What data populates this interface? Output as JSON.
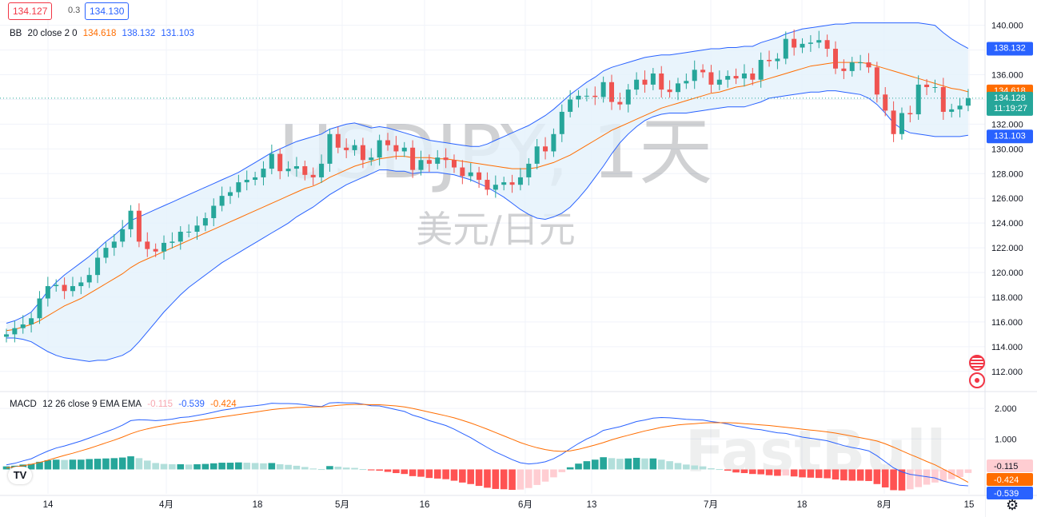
{
  "header": {
    "bid": "134.127",
    "spread": "0.3",
    "ask": "134.130"
  },
  "watermark": {
    "symbol": "USDJPY, 1天",
    "name": "美元/日元",
    "brand": "FastBull"
  },
  "legend_bb": {
    "name": "BB",
    "params": "20 close 2 0",
    "basis": "134.618",
    "upper": "138.132",
    "lower": "131.103"
  },
  "legend_macd": {
    "name": "MACD",
    "params": "12 26 close 9 EMA EMA",
    "hist": "-0.115",
    "macd": "-0.539",
    "signal": "-0.424"
  },
  "price_labels": {
    "upper": "138.132",
    "basis": "134.618",
    "last": "134.128",
    "countdown": "11:19:27",
    "lower": "131.103",
    "macd_hist": "-0.115",
    "macd_signal": "-0.424",
    "macd_line": "-0.539"
  },
  "colors": {
    "up": "#26a69a",
    "down": "#ef5350",
    "bb_line": "#2962ff",
    "bb_fill": "#e3f1fb",
    "basis": "#ff6d00",
    "macd_line": "#2962ff",
    "signal_line": "#ff6d00",
    "hist_up_strong": "#26a69a",
    "hist_up_weak": "#b2dfdb",
    "hist_down_strong": "#ff5252",
    "hist_down_weak": "#ffcdd2"
  },
  "icons": [
    "tradingview-logo-icon",
    "us-flag-icon",
    "jp-flag-icon",
    "gear-icon"
  ],
  "chart_data": [
    {
      "type": "candlestick",
      "title": "USDJPY, 1天",
      "x_tick_labels": [
        "14",
        "4月",
        "18",
        "5月",
        "16",
        "6月",
        "13",
        "7月",
        "18",
        "8月",
        "15"
      ],
      "y_ticks": [
        "140.000",
        "138.000",
        "136.000",
        "134.000",
        "132.000",
        "130.000",
        "128.000",
        "126.000",
        "124.000",
        "122.000",
        "120.000",
        "118.000",
        "116.000",
        "114.000",
        "112.000"
      ],
      "ylim": [
        110.5,
        141.4
      ],
      "close": [
        115.0,
        115.5,
        115.8,
        116.3,
        117.9,
        118.9,
        119.0,
        118.5,
        118.9,
        119.2,
        119.8,
        121.2,
        122.0,
        122.5,
        123.5,
        125.0,
        122.5,
        121.9,
        121.7,
        122.4,
        122.5,
        123.3,
        123.3,
        123.8,
        124.4,
        125.4,
        126.2,
        126.5,
        127.3,
        127.5,
        127.7,
        128.4,
        129.6,
        128.2,
        128.4,
        128.6,
        127.9,
        127.7,
        128.8,
        131.2,
        130.1,
        129.9,
        130.3,
        129.1,
        129.3,
        130.7,
        130.3,
        129.8,
        130.1,
        128.3,
        129.1,
        128.8,
        129.3,
        129.1,
        128.5,
        127.8,
        128.1,
        127.5,
        126.7,
        127.1,
        127.3,
        127.1,
        127.7,
        128.8,
        130.2,
        129.8,
        131.2,
        133.0,
        134.0,
        134.3,
        134.3,
        134.2,
        135.4,
        133.8,
        133.6,
        134.8,
        135.6,
        135.2,
        136.1,
        134.8,
        134.6,
        135.3,
        135.5,
        136.4,
        136.2,
        135.2,
        135.6,
        135.9,
        135.7,
        136.1,
        135.6,
        137.2,
        137.1,
        137.3,
        138.9,
        138.2,
        138.5,
        138.6,
        138.8,
        138.1,
        136.5,
        136.3,
        137.0,
        137.0,
        136.6,
        134.4,
        133.1,
        131.2,
        132.9,
        132.8,
        135.2,
        135.0,
        135.0,
        133.0,
        133.2,
        133.5,
        134.1
      ],
      "open": [
        114.8,
        115.0,
        115.5,
        115.8,
        116.3,
        117.9,
        118.9,
        119.0,
        118.5,
        118.9,
        119.2,
        119.8,
        121.2,
        122.0,
        122.5,
        123.5,
        125.0,
        122.5,
        121.9,
        121.7,
        122.4,
        122.5,
        123.3,
        123.3,
        123.8,
        124.4,
        125.4,
        126.2,
        126.5,
        127.3,
        127.5,
        127.7,
        128.4,
        129.6,
        128.2,
        128.4,
        128.6,
        127.9,
        127.7,
        128.8,
        131.2,
        130.1,
        129.9,
        130.3,
        129.1,
        129.3,
        130.7,
        130.3,
        129.8,
        130.1,
        128.3,
        129.1,
        128.8,
        129.3,
        129.1,
        128.5,
        127.8,
        128.1,
        127.5,
        126.7,
        127.1,
        127.3,
        127.1,
        127.7,
        128.8,
        130.2,
        129.8,
        131.2,
        133.0,
        134.0,
        134.3,
        134.3,
        134.2,
        135.4,
        133.8,
        133.6,
        134.8,
        135.6,
        135.2,
        136.1,
        134.8,
        134.6,
        135.3,
        135.5,
        136.4,
        136.2,
        135.2,
        135.6,
        135.9,
        135.7,
        136.1,
        135.6,
        137.2,
        137.1,
        137.3,
        138.9,
        138.2,
        138.5,
        138.6,
        138.8,
        138.1,
        136.5,
        136.3,
        137.0,
        137.0,
        136.6,
        134.4,
        133.1,
        131.2,
        132.9,
        132.8,
        135.2,
        135.0,
        135.0,
        133.0,
        133.2,
        133.5
      ],
      "series": [
        {
          "name": "BB",
          "values_label": "upper",
          "values": [
            115.9,
            116.1,
            116.4,
            116.8,
            117.6,
            118.5,
            119.2,
            119.8,
            120.3,
            120.8,
            121.3,
            121.9,
            122.5,
            123.0,
            123.6,
            124.2,
            124.5,
            124.8,
            125.1,
            125.4,
            125.7,
            126.0,
            126.3,
            126.6,
            126.9,
            127.2,
            127.5,
            127.8,
            128.1,
            128.5,
            128.9,
            129.3,
            129.7,
            130.0,
            130.3,
            130.6,
            130.8,
            131.0,
            131.2,
            131.6,
            131.8,
            132.0,
            132.1,
            131.9,
            131.7,
            131.8,
            131.7,
            131.5,
            131.3,
            131.1,
            130.9,
            130.7,
            130.6,
            130.5,
            130.4,
            130.3,
            130.2,
            130.2,
            130.4,
            130.7,
            131.0,
            131.3,
            131.6,
            131.9,
            132.3,
            132.7,
            133.2,
            133.8,
            134.4,
            134.9,
            135.4,
            135.8,
            136.3,
            136.6,
            136.8,
            137.0,
            137.2,
            137.4,
            137.5,
            137.6,
            137.6,
            137.7,
            137.8,
            137.9,
            138.0,
            138.1,
            138.1,
            138.2,
            138.2,
            138.3,
            138.3,
            138.6,
            138.8,
            139.0,
            139.3,
            139.5,
            139.7,
            139.8,
            139.9,
            140.0,
            140.1,
            140.1,
            140.2,
            140.2,
            140.2,
            140.2,
            140.2,
            140.2,
            140.2,
            140.2,
            140.2,
            140.1,
            140.0,
            139.4,
            138.9,
            138.5,
            138.132
          ]
        },
        {
          "name": "BB basis",
          "values": [
            115.3,
            115.4,
            115.6,
            115.8,
            116.1,
            116.5,
            116.9,
            117.3,
            117.6,
            117.9,
            118.3,
            118.7,
            119.1,
            119.5,
            119.9,
            120.4,
            120.8,
            121.1,
            121.4,
            121.7,
            122.0,
            122.3,
            122.6,
            122.9,
            123.2,
            123.5,
            123.8,
            124.1,
            124.4,
            124.7,
            125.0,
            125.3,
            125.6,
            125.9,
            126.2,
            126.5,
            126.8,
            127.0,
            127.3,
            127.7,
            128.0,
            128.3,
            128.6,
            128.8,
            129.0,
            129.2,
            129.3,
            129.4,
            129.4,
            129.3,
            129.3,
            129.3,
            129.2,
            129.2,
            129.1,
            129.0,
            128.9,
            128.8,
            128.7,
            128.6,
            128.5,
            128.4,
            128.4,
            128.4,
            128.5,
            128.7,
            128.9,
            129.2,
            129.5,
            129.9,
            130.3,
            130.7,
            131.1,
            131.5,
            131.8,
            132.1,
            132.4,
            132.7,
            133.0,
            133.3,
            133.5,
            133.7,
            133.9,
            134.1,
            134.3,
            134.5,
            134.6,
            134.8,
            135.0,
            135.1,
            135.3,
            135.5,
            135.7,
            135.9,
            136.1,
            136.3,
            136.5,
            136.7,
            136.8,
            136.9,
            137.0,
            137.0,
            137.0,
            137.0,
            136.9,
            136.7,
            136.5,
            136.3,
            136.1,
            135.9,
            135.7,
            135.5,
            135.3,
            135.1,
            134.9,
            134.8,
            134.618
          ]
        },
        {
          "name": "BB lower",
          "values": [
            114.7,
            114.7,
            114.6,
            114.4,
            114.0,
            113.6,
            113.3,
            113.1,
            113.0,
            112.9,
            112.8,
            112.9,
            112.9,
            113.1,
            113.3,
            113.7,
            114.4,
            115.2,
            116.0,
            116.8,
            117.5,
            118.2,
            118.8,
            119.3,
            119.8,
            120.3,
            120.8,
            121.2,
            121.6,
            122.0,
            122.4,
            122.8,
            123.2,
            123.6,
            124.0,
            124.5,
            124.9,
            125.3,
            125.8,
            126.3,
            126.7,
            127.1,
            127.4,
            127.7,
            128.0,
            128.3,
            128.3,
            128.2,
            128.2,
            128.0,
            128.1,
            128.1,
            128.1,
            128.0,
            127.9,
            127.7,
            127.5,
            127.2,
            126.9,
            126.5,
            126.1,
            125.6,
            125.1,
            124.7,
            124.4,
            124.3,
            124.5,
            124.8,
            125.3,
            126.0,
            126.8,
            127.7,
            128.6,
            129.6,
            130.5,
            131.2,
            131.8,
            132.3,
            132.6,
            132.8,
            132.9,
            132.9,
            132.9,
            133.0,
            133.1,
            133.2,
            133.3,
            133.4,
            133.4,
            133.4,
            133.6,
            133.8,
            134.1,
            134.2,
            134.3,
            134.4,
            134.5,
            134.6,
            134.6,
            134.7,
            134.7,
            134.6,
            134.5,
            134.4,
            134.1,
            133.6,
            132.9,
            132.1,
            131.6,
            131.3,
            131.2,
            131.1,
            131.0,
            131.0,
            131.0,
            131.0,
            131.103
          ]
        }
      ]
    },
    {
      "type": "line",
      "title": "MACD 12 26 close 9 EMA EMA",
      "y_ticks": [
        "2.000",
        "1.000"
      ],
      "ylim": [
        -0.8,
        2.5
      ],
      "series": [
        {
          "name": "MACD",
          "values": [
            0.15,
            0.2,
            0.28,
            0.35,
            0.48,
            0.6,
            0.7,
            0.77,
            0.85,
            0.93,
            1.03,
            1.13,
            1.23,
            1.33,
            1.45,
            1.6,
            1.63,
            1.62,
            1.6,
            1.62,
            1.65,
            1.7,
            1.72,
            1.77,
            1.82,
            1.88,
            1.94,
            1.98,
            2.03,
            2.06,
            2.09,
            2.12,
            2.17,
            2.16,
            2.16,
            2.15,
            2.12,
            2.08,
            2.06,
            2.18,
            2.19,
            2.18,
            2.18,
            2.14,
            2.09,
            2.08,
            2.02,
            1.96,
            1.9,
            1.78,
            1.7,
            1.6,
            1.52,
            1.44,
            1.32,
            1.18,
            1.04,
            0.88,
            0.72,
            0.57,
            0.45,
            0.32,
            0.22,
            0.18,
            0.2,
            0.25,
            0.35,
            0.5,
            0.68,
            0.85,
            1.0,
            1.12,
            1.28,
            1.34,
            1.4,
            1.48,
            1.57,
            1.62,
            1.68,
            1.7,
            1.69,
            1.67,
            1.64,
            1.63,
            1.62,
            1.57,
            1.54,
            1.49,
            1.42,
            1.38,
            1.33,
            1.3,
            1.25,
            1.2,
            1.18,
            1.12,
            1.06,
            1.02,
            0.98,
            0.94,
            0.86,
            0.78,
            0.72,
            0.67,
            0.61,
            0.45,
            0.25,
            0.05,
            -0.08,
            -0.16,
            -0.2,
            -0.24,
            -0.28,
            -0.38,
            -0.45,
            -0.52,
            -0.539
          ]
        },
        {
          "name": "Signal",
          "values": [
            0.05,
            0.08,
            0.12,
            0.17,
            0.23,
            0.3,
            0.38,
            0.46,
            0.53,
            0.61,
            0.69,
            0.78,
            0.87,
            0.96,
            1.06,
            1.17,
            1.26,
            1.33,
            1.39,
            1.44,
            1.48,
            1.53,
            1.56,
            1.6,
            1.64,
            1.68,
            1.72,
            1.76,
            1.8,
            1.84,
            1.88,
            1.92,
            1.96,
            1.99,
            2.01,
            2.03,
            2.04,
            2.05,
            2.05,
            2.07,
            2.1,
            2.12,
            2.13,
            2.13,
            2.12,
            2.12,
            2.1,
            2.08,
            2.05,
            2.0,
            1.94,
            1.88,
            1.82,
            1.76,
            1.69,
            1.61,
            1.52,
            1.42,
            1.32,
            1.21,
            1.1,
            0.99,
            0.88,
            0.79,
            0.71,
            0.65,
            0.61,
            0.59,
            0.61,
            0.66,
            0.73,
            0.8,
            0.88,
            0.97,
            1.05,
            1.12,
            1.19,
            1.26,
            1.32,
            1.38,
            1.42,
            1.46,
            1.48,
            1.5,
            1.52,
            1.53,
            1.53,
            1.53,
            1.52,
            1.5,
            1.48,
            1.46,
            1.44,
            1.41,
            1.38,
            1.35,
            1.32,
            1.29,
            1.26,
            1.23,
            1.19,
            1.14,
            1.09,
            1.04,
            0.99,
            0.93,
            0.84,
            0.73,
            0.61,
            0.49,
            0.38,
            0.26,
            0.15,
            0.01,
            -0.13,
            -0.27,
            -0.424
          ]
        },
        {
          "name": "Histogram",
          "values": [
            0.1,
            0.12,
            0.16,
            0.18,
            0.25,
            0.3,
            0.32,
            0.31,
            0.32,
            0.32,
            0.34,
            0.35,
            0.36,
            0.37,
            0.39,
            0.43,
            0.37,
            0.29,
            0.21,
            0.18,
            0.17,
            0.17,
            0.16,
            0.17,
            0.18,
            0.2,
            0.22,
            0.22,
            0.23,
            0.22,
            0.21,
            0.2,
            0.21,
            0.17,
            0.15,
            0.12,
            0.08,
            0.03,
            0.01,
            0.11,
            0.09,
            0.06,
            0.05,
            0.01,
            -0.03,
            -0.04,
            -0.08,
            -0.12,
            -0.15,
            -0.22,
            -0.24,
            -0.28,
            -0.3,
            -0.32,
            -0.37,
            -0.43,
            -0.48,
            -0.54,
            -0.6,
            -0.64,
            -0.65,
            -0.67,
            -0.66,
            -0.61,
            -0.51,
            -0.4,
            -0.26,
            -0.09,
            0.07,
            0.19,
            0.27,
            0.32,
            0.4,
            0.37,
            0.35,
            0.36,
            0.38,
            0.36,
            0.36,
            0.32,
            0.27,
            0.21,
            0.16,
            0.13,
            0.1,
            0.04,
            0.01,
            -0.04,
            -0.1,
            -0.12,
            -0.15,
            -0.16,
            -0.19,
            -0.21,
            -0.2,
            -0.23,
            -0.26,
            -0.27,
            -0.28,
            -0.29,
            -0.33,
            -0.36,
            -0.37,
            -0.37,
            -0.38,
            -0.48,
            -0.59,
            -0.68,
            -0.69,
            -0.65,
            -0.58,
            -0.5,
            -0.43,
            -0.39,
            -0.32,
            -0.25,
            -0.115
          ]
        }
      ]
    }
  ]
}
